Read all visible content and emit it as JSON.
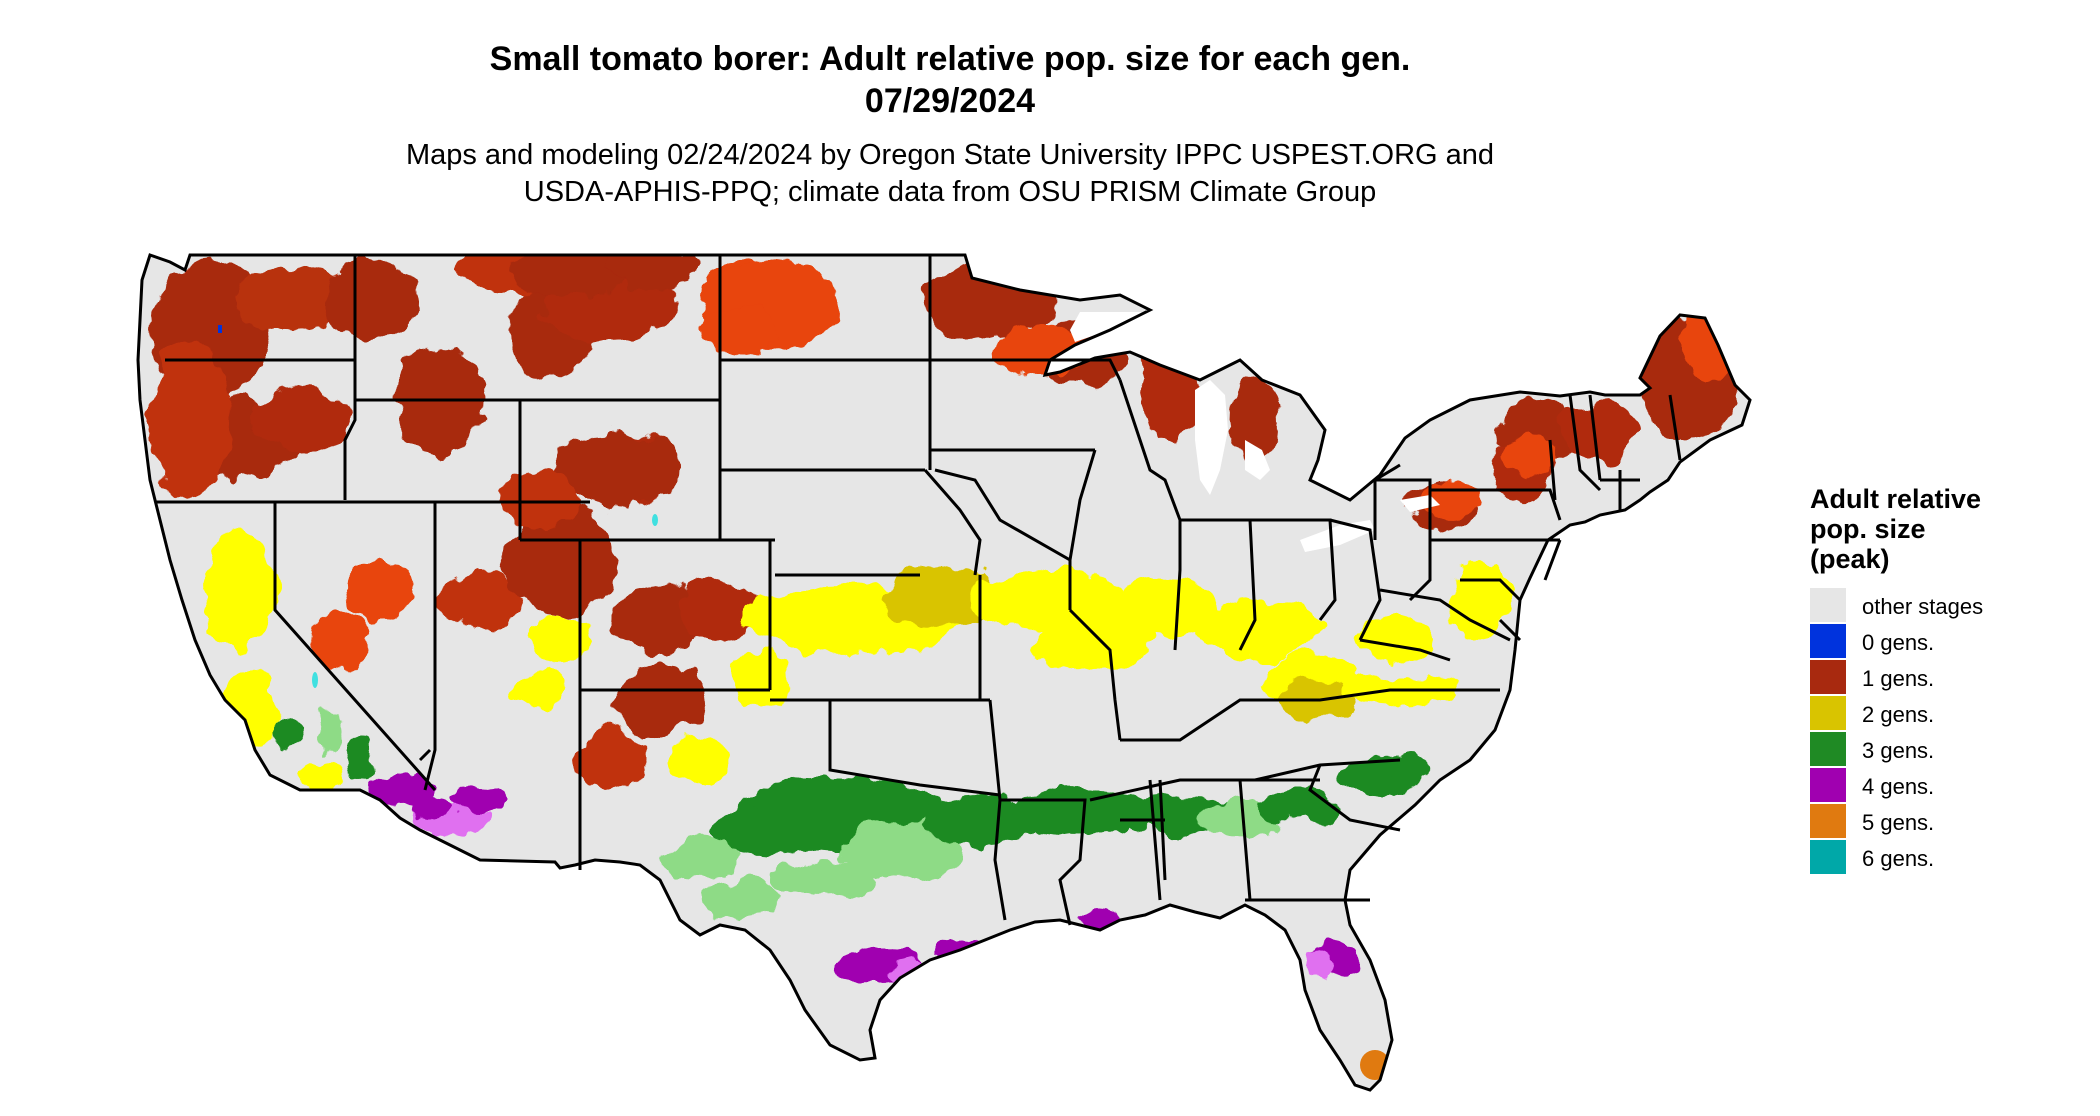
{
  "header": {
    "title_line1": "Small tomato borer: Adult relative pop. size for each gen.",
    "title_line2": "07/29/2024",
    "subtitle_line1": "Maps and modeling 02/24/2024 by Oregon State University IPPC USPEST.ORG and",
    "subtitle_line2": "USDA-APHIS-PPQ; climate data from OSU PRISM Climate Group"
  },
  "legend": {
    "title_line1": "Adult relative",
    "title_line2": "pop. size",
    "title_line3": "(peak)",
    "items": [
      {
        "label": "other stages",
        "color": "#e6e6e6"
      },
      {
        "label": "0 gens.",
        "color": "#0033dd"
      },
      {
        "label": "1 gens.",
        "color": "#a8290f"
      },
      {
        "label": "2 gens.",
        "color": "#d9c400"
      },
      {
        "label": "3 gens.",
        "color": "#1f8a24"
      },
      {
        "label": "4 gens.",
        "color": "#a000b0"
      },
      {
        "label": "5 gens.",
        "color": "#e07a10"
      },
      {
        "label": "6 gens.",
        "color": "#00a8a8"
      }
    ]
  },
  "map_colors": {
    "land": "#e6e6e6",
    "border": "#000000",
    "gen1_light": "#e8440c",
    "gen2_light": "#ffff00",
    "gen3_light": "#8edb86",
    "gen4_light": "#e070f0",
    "gen6_light": "#40e0e0"
  }
}
